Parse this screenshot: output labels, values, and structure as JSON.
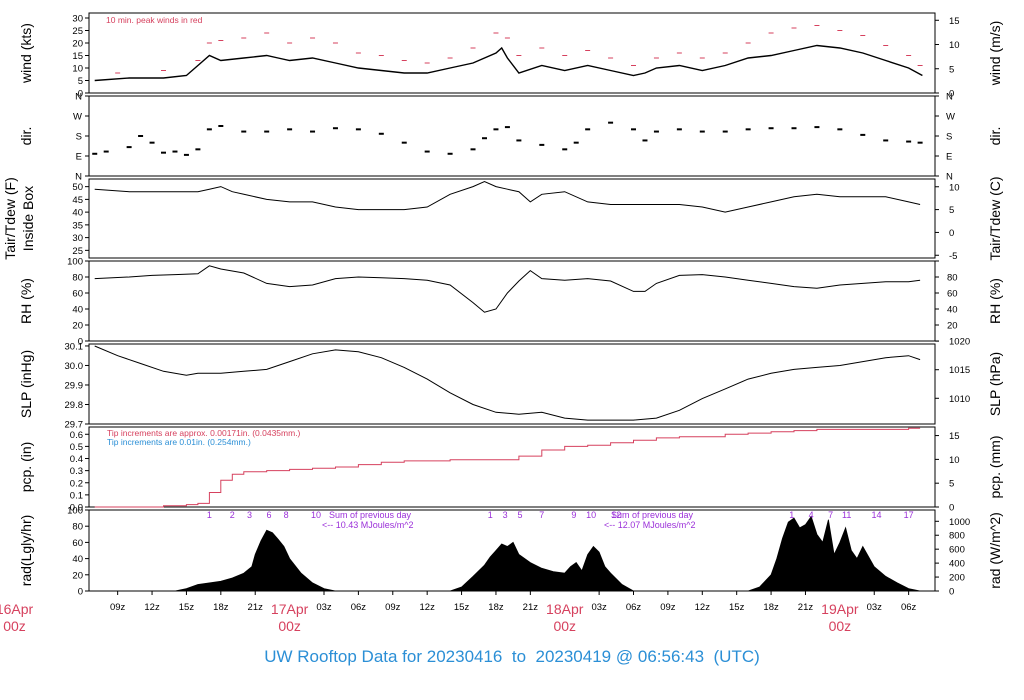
{
  "colors": {
    "title": "#2b8fd6",
    "date": "#d6415e",
    "peak": "#d6415e",
    "pcp_note1": "#d6415e",
    "pcp_note2": "#2b8fd6",
    "rad_note": "#9b30d9",
    "trace": "#000000"
  },
  "footer": {
    "prefix": "UW Rooftop Data for",
    "start": "20230416",
    "to": "to",
    "end": "20230419",
    "at": "@",
    "time": "06:56:43",
    "tz": "(UTC)"
  },
  "chart_data": [
    {
      "type": "line",
      "id": "wind",
      "ylabel": "wind (kts)",
      "ylabel_right": "wind (m/s)",
      "ylim": [
        0,
        32
      ],
      "yticks": [
        0,
        5,
        10,
        15,
        20,
        25,
        30
      ],
      "right_ylim": [
        0,
        16.5
      ],
      "right_yticks": [
        0,
        5,
        10,
        15
      ],
      "annotation": "10 min. peak winds in red",
      "series": [
        {
          "values_note": "mean wind",
          "x": [
            7,
            10,
            13,
            15,
            16,
            17,
            18,
            20,
            22,
            23,
            24,
            26,
            28,
            30,
            32,
            34,
            36,
            38,
            40,
            42,
            42.5,
            43,
            44,
            46,
            48,
            50,
            52,
            54,
            55,
            56,
            58,
            60,
            62,
            64,
            66,
            68,
            70,
            72,
            74,
            76,
            78,
            79.2
          ],
          "y": [
            5,
            6,
            6,
            7,
            11,
            15,
            13,
            14,
            15,
            14,
            13,
            14,
            12,
            10,
            9,
            8,
            8,
            10,
            12,
            16,
            18,
            14,
            8,
            11,
            9,
            11,
            9,
            7,
            8,
            10,
            11,
            9,
            11,
            14,
            15,
            17,
            19,
            18,
            16,
            13,
            10,
            7
          ]
        },
        {
          "values_note": "peak gusts",
          "x": [
            9,
            13,
            16,
            17,
            18,
            20,
            22,
            24,
            26,
            28,
            30,
            32,
            34,
            36,
            38,
            40,
            42,
            43,
            44,
            46,
            48,
            50,
            52,
            54,
            56,
            58,
            60,
            62,
            64,
            66,
            68,
            70,
            72,
            74,
            76,
            78,
            79
          ],
          "y": [
            8,
            9,
            13,
            20,
            21,
            22,
            24,
            20,
            22,
            20,
            16,
            15,
            13,
            12,
            14,
            18,
            24,
            22,
            15,
            18,
            15,
            17,
            14,
            11,
            14,
            16,
            14,
            16,
            20,
            24,
            26,
            27,
            25,
            23,
            19,
            15,
            11
          ]
        }
      ]
    },
    {
      "type": "scatter",
      "id": "dir",
      "ylabel": "dir.",
      "ylabel_right": "dir.",
      "ylim": [
        0,
        360
      ],
      "ytick_labels": [
        "N",
        "E",
        "S",
        "W",
        "N"
      ],
      "x": [
        7,
        8,
        10,
        11,
        12,
        13,
        14,
        15,
        16,
        17,
        18,
        20,
        22,
        24,
        26,
        28,
        30,
        32,
        34,
        36,
        38,
        40,
        41,
        42,
        43,
        44,
        46,
        48,
        49,
        50,
        52,
        54,
        55,
        56,
        58,
        60,
        62,
        64,
        66,
        68,
        70,
        72,
        74,
        76,
        78,
        79
      ],
      "y": [
        100,
        110,
        130,
        180,
        150,
        105,
        110,
        95,
        120,
        210,
        225,
        200,
        200,
        210,
        200,
        215,
        210,
        190,
        150,
        110,
        100,
        120,
        170,
        210,
        220,
        160,
        140,
        120,
        150,
        210,
        240,
        210,
        160,
        200,
        210,
        200,
        200,
        210,
        215,
        215,
        220,
        210,
        185,
        160,
        155,
        150
      ]
    },
    {
      "type": "line",
      "id": "temp",
      "ylabel": "Tair/Tdew (F)",
      "ylabel2": "Inside Box",
      "ylabel_right": "Tair/Tdew (C)",
      "ylim": [
        22,
        53
      ],
      "yticks": [
        25,
        30,
        35,
        40,
        45,
        50
      ],
      "right_ylim": [
        -5.6,
        11.7
      ],
      "right_yticks": [
        -5,
        0,
        5,
        10
      ],
      "x": [
        7,
        10,
        12,
        14,
        16,
        17,
        18,
        19,
        20,
        22,
        24,
        26,
        28,
        30,
        32,
        34,
        36,
        38,
        40,
        41,
        42,
        43,
        44,
        45,
        46,
        48,
        50,
        52,
        54,
        56,
        58,
        60,
        62,
        64,
        66,
        68,
        70,
        72,
        74,
        76,
        78,
        79
      ],
      "y": [
        49,
        48,
        48,
        48,
        48,
        49,
        50,
        48,
        47,
        45,
        44,
        44,
        42,
        41,
        41,
        41,
        42,
        47,
        50,
        52,
        50,
        49,
        48,
        44,
        47,
        48,
        44,
        43,
        43,
        43,
        43,
        42,
        40,
        42,
        44,
        46,
        47,
        46,
        46,
        46,
        44,
        43
      ]
    },
    {
      "type": "line",
      "id": "rh",
      "ylabel": "RH (%)",
      "ylabel_right": "RH (%)",
      "ylim": [
        0,
        100
      ],
      "yticks": [
        0,
        20,
        40,
        60,
        80,
        100
      ],
      "x": [
        7,
        10,
        12,
        14,
        16,
        17,
        18,
        20,
        22,
        24,
        26,
        28,
        30,
        32,
        34,
        36,
        38,
        40,
        41,
        42,
        43,
        44,
        45,
        46,
        48,
        50,
        52,
        54,
        55,
        56,
        58,
        60,
        62,
        64,
        66,
        68,
        70,
        72,
        74,
        76,
        78,
        79
      ],
      "y": [
        78,
        80,
        82,
        83,
        84,
        94,
        90,
        85,
        72,
        68,
        70,
        78,
        80,
        79,
        78,
        76,
        70,
        48,
        36,
        40,
        60,
        75,
        88,
        78,
        76,
        78,
        75,
        62,
        62,
        72,
        82,
        83,
        80,
        76,
        72,
        68,
        66,
        70,
        72,
        74,
        74,
        76
      ]
    },
    {
      "type": "line",
      "id": "slp",
      "ylabel": "SLP (inHg)",
      "ylabel_right": "SLP (hPa)",
      "ylim": [
        29.7,
        30.11
      ],
      "yticks": [
        29.7,
        29.8,
        29.9,
        30.0,
        30.1
      ],
      "right_ylim": [
        1005.5,
        1019.5
      ],
      "right_yticks": [
        1010,
        1015,
        1020
      ],
      "x": [
        7,
        9,
        11,
        13,
        15,
        16,
        18,
        20,
        22,
        24,
        26,
        28,
        30,
        32,
        34,
        36,
        38,
        40,
        42,
        44,
        46,
        48,
        50,
        52,
        54,
        56,
        58,
        60,
        62,
        64,
        66,
        68,
        70,
        72,
        74,
        76,
        78,
        79
      ],
      "y": [
        30.1,
        30.05,
        30.01,
        29.97,
        29.95,
        29.96,
        29.96,
        29.97,
        29.98,
        30.02,
        30.06,
        30.08,
        30.07,
        30.04,
        29.99,
        29.93,
        29.86,
        29.8,
        29.76,
        29.75,
        29.76,
        29.73,
        29.72,
        29.72,
        29.72,
        29.73,
        29.77,
        29.83,
        29.88,
        29.93,
        29.96,
        29.98,
        29.99,
        30.0,
        30.02,
        30.04,
        30.05,
        30.03
      ]
    },
    {
      "type": "line",
      "id": "pcp",
      "ylabel": "pcp. (in)",
      "ylabel_right": "pcp. (mm)",
      "ylim": [
        0,
        0.66
      ],
      "yticks": [
        0.0,
        0.1,
        0.2,
        0.3,
        0.4,
        0.5,
        0.6
      ],
      "right_ylim": [
        0,
        16.8
      ],
      "right_yticks": [
        0,
        5,
        10,
        15
      ],
      "annotations": [
        "Tip increments are approx. 0.00171in. (0.0435mm.)",
        "Tip increments are 0.01in. (0.254mm.)"
      ],
      "x": [
        7,
        10,
        13,
        15,
        16,
        17,
        18,
        19,
        20,
        22,
        24,
        26,
        28,
        30,
        32,
        34,
        36,
        38,
        40,
        42,
        44,
        46,
        48,
        50,
        52,
        54,
        56,
        58,
        60,
        62,
        64,
        66,
        68,
        70,
        72,
        74,
        76,
        78,
        79
      ],
      "y": [
        0,
        0,
        0.01,
        0.02,
        0.03,
        0.12,
        0.22,
        0.27,
        0.29,
        0.3,
        0.31,
        0.32,
        0.33,
        0.35,
        0.37,
        0.38,
        0.38,
        0.39,
        0.39,
        0.39,
        0.42,
        0.47,
        0.5,
        0.51,
        0.53,
        0.55,
        0.57,
        0.58,
        0.58,
        0.6,
        0.61,
        0.62,
        0.63,
        0.64,
        0.64,
        0.64,
        0.64,
        0.65,
        0.65
      ]
    },
    {
      "type": "area",
      "id": "rad",
      "ylabel": "rad(Lgly/hr)",
      "ylabel_right": "rad (W/m^2)",
      "ylim": [
        0,
        100
      ],
      "yticks": [
        0,
        20,
        40,
        60,
        80,
        100
      ],
      "right_ylim": [
        0,
        1162
      ],
      "right_yticks": [
        0,
        200,
        400,
        600,
        800,
        1000
      ],
      "annotations": [
        "Sum of previous day",
        "<-- 10.43 MJoules/m^2",
        "Sum of previous day",
        "<-- 12.07 MJoules/m^2"
      ],
      "hour_labels": [
        {
          "x": 17,
          "text": "1"
        },
        {
          "x": 19,
          "text": "2"
        },
        {
          "x": 20.5,
          "text": "3"
        },
        {
          "x": 22.2,
          "text": "6"
        },
        {
          "x": 23.7,
          "text": "8"
        },
        {
          "x": 26.3,
          "text": "10"
        },
        {
          "x": 41.5,
          "text": "1"
        },
        {
          "x": 42.8,
          "text": "3"
        },
        {
          "x": 44.1,
          "text": "5"
        },
        {
          "x": 46,
          "text": "7"
        },
        {
          "x": 48.8,
          "text": "9"
        },
        {
          "x": 50.3,
          "text": "10"
        },
        {
          "x": 52.5,
          "text": "12"
        },
        {
          "x": 67.8,
          "text": "1"
        },
        {
          "x": 69.5,
          "text": "4"
        },
        {
          "x": 71.2,
          "text": "7"
        },
        {
          "x": 72.6,
          "text": "11"
        },
        {
          "x": 75.2,
          "text": "14"
        },
        {
          "x": 78,
          "text": "17"
        }
      ],
      "x": [
        14,
        15,
        16,
        17,
        18,
        19,
        20,
        20.7,
        21,
        21.5,
        22,
        22.5,
        23,
        23.5,
        24,
        25,
        26,
        27,
        28,
        38,
        39,
        40,
        41,
        41.5,
        42,
        42.5,
        43,
        43.5,
        44,
        45,
        46,
        47,
        48,
        48.5,
        49,
        49.5,
        50,
        50.5,
        51,
        51.5,
        52,
        53,
        54,
        64,
        65,
        66,
        66.5,
        67,
        67.5,
        68,
        68.5,
        69,
        69.5,
        70,
        70.5,
        71,
        71.5,
        72,
        72.5,
        73,
        73.5,
        74,
        75,
        76,
        77,
        78,
        79
      ],
      "y": [
        0,
        3,
        8,
        10,
        12,
        16,
        22,
        30,
        45,
        62,
        75,
        72,
        64,
        55,
        40,
        22,
        10,
        3,
        0,
        0,
        5,
        18,
        32,
        42,
        50,
        58,
        55,
        60,
        45,
        35,
        28,
        24,
        22,
        30,
        35,
        25,
        45,
        55,
        48,
        30,
        22,
        8,
        0,
        0,
        5,
        20,
        40,
        65,
        85,
        90,
        78,
        82,
        92,
        70,
        60,
        88,
        45,
        60,
        78,
        50,
        40,
        55,
        30,
        18,
        10,
        3,
        0
      ]
    }
  ],
  "x_axis": {
    "xlim": [
      6.5,
      80.3
    ],
    "tick_labels": [
      {
        "x": 9,
        "text": "09z"
      },
      {
        "x": 12,
        "text": "12z"
      },
      {
        "x": 15,
        "text": "15z"
      },
      {
        "x": 18,
        "text": "18z"
      },
      {
        "x": 21,
        "text": "21z"
      },
      {
        "x": 27,
        "text": "03z"
      },
      {
        "x": 30,
        "text": "06z"
      },
      {
        "x": 33,
        "text": "09z"
      },
      {
        "x": 36,
        "text": "12z"
      },
      {
        "x": 39,
        "text": "15z"
      },
      {
        "x": 42,
        "text": "18z"
      },
      {
        "x": 45,
        "text": "21z"
      },
      {
        "x": 51,
        "text": "03z"
      },
      {
        "x": 54,
        "text": "06z"
      },
      {
        "x": 57,
        "text": "09z"
      },
      {
        "x": 60,
        "text": "12z"
      },
      {
        "x": 63,
        "text": "15z"
      },
      {
        "x": 66,
        "text": "18z"
      },
      {
        "x": 69,
        "text": "21z"
      },
      {
        "x": 75,
        "text": "03z"
      },
      {
        "x": 78,
        "text": "06z"
      }
    ],
    "date_labels": [
      {
        "x": 0,
        "day": "16Apr",
        "hour": "00z"
      },
      {
        "x": 24,
        "day": "17Apr",
        "hour": "00z"
      },
      {
        "x": 48,
        "day": "18Apr",
        "hour": "00z"
      },
      {
        "x": 72,
        "day": "19Apr",
        "hour": "00z"
      }
    ]
  }
}
